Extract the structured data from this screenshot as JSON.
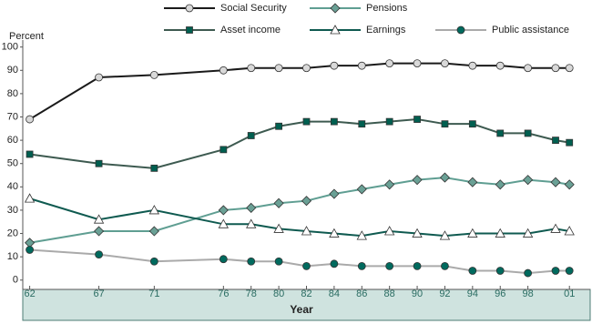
{
  "chart_data": {
    "type": "line",
    "y_label": "Percent",
    "x_label": "Year",
    "x": [
      1962,
      1967,
      1971,
      1976,
      1978,
      1980,
      1982,
      1984,
      1986,
      1988,
      1990,
      1992,
      1994,
      1996,
      1998,
      2000,
      2001
    ],
    "xlim": [
      1961.5,
      2002.5
    ],
    "xticks": [
      {
        "value": 1962,
        "label": "62"
      },
      {
        "value": 1967,
        "label": "67"
      },
      {
        "value": 1971,
        "label": "71"
      },
      {
        "value": 1976,
        "label": "76"
      },
      {
        "value": 1978,
        "label": "78"
      },
      {
        "value": 1980,
        "label": "80"
      },
      {
        "value": 1982,
        "label": "82"
      },
      {
        "value": 1984,
        "label": "84"
      },
      {
        "value": 1986,
        "label": "86"
      },
      {
        "value": 1988,
        "label": "88"
      },
      {
        "value": 1990,
        "label": "90"
      },
      {
        "value": 1992,
        "label": "92"
      },
      {
        "value": 1994,
        "label": "94"
      },
      {
        "value": 1996,
        "label": "96"
      },
      {
        "value": 1998,
        "label": "98"
      },
      {
        "value": 2001,
        "label": "01"
      }
    ],
    "ylim": [
      -4,
      103
    ],
    "yticks": [
      0,
      10,
      20,
      30,
      40,
      50,
      60,
      70,
      80,
      90,
      100
    ],
    "grid": false,
    "series": [
      {
        "name": "Social Security",
        "color": "#1a1a1a",
        "marker": "circle",
        "marker_color": "#d9d9d9",
        "values": [
          69,
          87,
          88,
          90,
          91,
          91,
          91,
          92,
          92,
          93,
          93,
          93,
          92,
          92,
          91,
          91,
          91
        ]
      },
      {
        "name": "Pensions",
        "color": "#5f9e92",
        "marker": "diamond",
        "marker_color": "#6aa095",
        "values": [
          16,
          21,
          21,
          30,
          31,
          33,
          34,
          37,
          39,
          41,
          43,
          44,
          42,
          41,
          43,
          42,
          41
        ]
      },
      {
        "name": "Asset income",
        "color": "#3d5a50",
        "marker": "square",
        "marker_color": "#005f50",
        "values": [
          54,
          50,
          48,
          56,
          62,
          66,
          68,
          68,
          67,
          68,
          69,
          67,
          67,
          63,
          63,
          60,
          59
        ]
      },
      {
        "name": "Earnings",
        "color": "#0f5a50",
        "marker": "triangle",
        "marker_color": "#ffffff",
        "values": [
          35,
          26,
          30,
          24,
          24,
          22,
          21,
          20,
          19,
          21,
          20,
          19,
          20,
          20,
          20,
          22,
          21
        ]
      },
      {
        "name": "Public assistance",
        "color": "#aaaaaa",
        "marker": "circle",
        "marker_color": "#006a5e",
        "values": [
          13,
          11,
          8,
          9,
          8,
          8,
          6,
          7,
          6,
          6,
          6,
          6,
          4,
          4,
          3,
          4,
          4
        ]
      }
    ]
  }
}
